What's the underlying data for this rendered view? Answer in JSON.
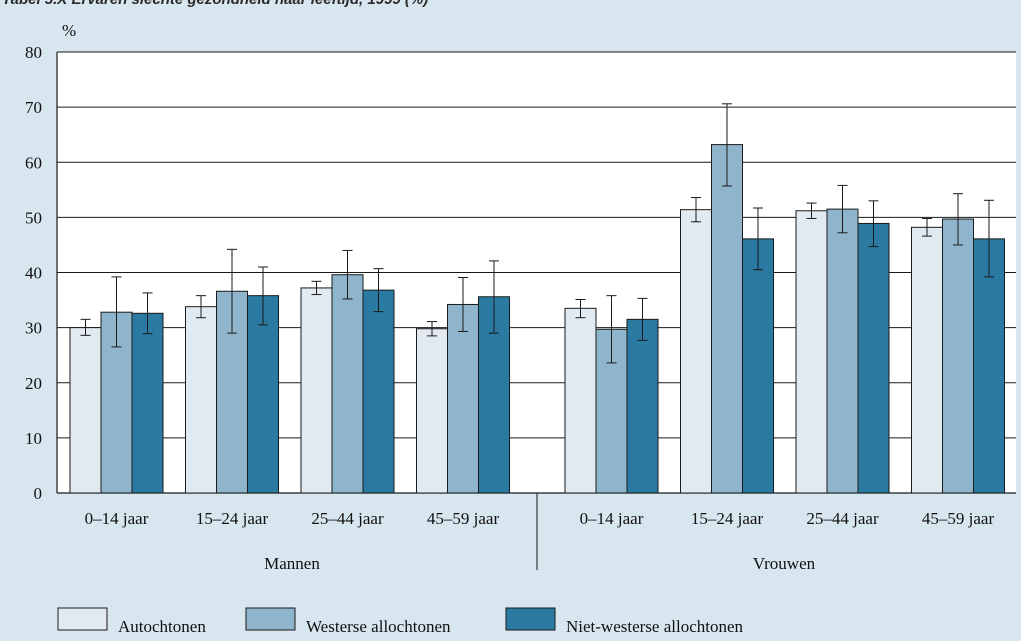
{
  "chart_data": {
    "type": "bar",
    "title": "Tabel 5.X Ervaren slechte gezondheid naar leeftijd, 1999 (%)",
    "ylabel": "%",
    "ylim": [
      0,
      80
    ],
    "yticks": [
      0,
      10,
      20,
      30,
      40,
      50,
      60,
      70,
      80
    ],
    "grid": true,
    "legend_position": "bottom",
    "groups": [
      {
        "label": "Mannen",
        "categories": [
          "0–14  jaar",
          "15–24 jaar",
          "25–44 jaar",
          "45–59 jaar"
        ],
        "series": [
          {
            "name": "Autochtonen",
            "values": [
              30.0,
              33.8,
              37.2,
              29.8
            ],
            "err_low": [
              28.6,
              31.8,
              36.0,
              28.5
            ],
            "err_high": [
              31.5,
              35.8,
              38.4,
              31.1
            ]
          },
          {
            "name": "Westerse allochtonen",
            "values": [
              32.8,
              36.6,
              39.6,
              34.2
            ],
            "err_low": [
              26.5,
              29.0,
              35.2,
              29.3
            ],
            "err_high": [
              39.2,
              44.2,
              44.0,
              39.1
            ]
          },
          {
            "name": "Niet-westerse allochtonen",
            "values": [
              32.6,
              35.8,
              36.8,
              35.6
            ],
            "err_low": [
              28.9,
              30.5,
              32.9,
              29.0
            ],
            "err_high": [
              36.3,
              41.0,
              40.7,
              42.1
            ]
          }
        ]
      },
      {
        "label": "Vrouwen",
        "categories": [
          "0–14 jaar",
          "15–24 jaar",
          "25–44 jaar",
          "45–59 jaar"
        ],
        "series": [
          {
            "name": "Autochtonen",
            "values": [
              33.5,
              51.4,
              51.2,
              48.2
            ],
            "err_low": [
              31.8,
              49.2,
              49.8,
              46.6
            ],
            "err_high": [
              35.1,
              53.6,
              52.6,
              49.8
            ]
          },
          {
            "name": "Westerse allochtonen",
            "values": [
              29.7,
              63.2,
              51.5,
              49.7
            ],
            "err_low": [
              23.6,
              55.7,
              47.2,
              45.0
            ],
            "err_high": [
              35.8,
              70.6,
              55.8,
              54.3
            ]
          },
          {
            "name": "Niet-westerse allochtonen",
            "values": [
              31.5,
              46.1,
              48.9,
              46.1
            ],
            "err_low": [
              27.7,
              40.5,
              44.7,
              39.2
            ],
            "err_high": [
              35.3,
              51.7,
              53.0,
              53.1
            ]
          }
        ]
      }
    ],
    "legend": [
      "Autochtonen",
      "Westerse allochtonen",
      "Niet-westerse allochtonen"
    ],
    "colors": [
      "#e1eaf1",
      "#8fb5cc",
      "#2a7aa2"
    ]
  }
}
